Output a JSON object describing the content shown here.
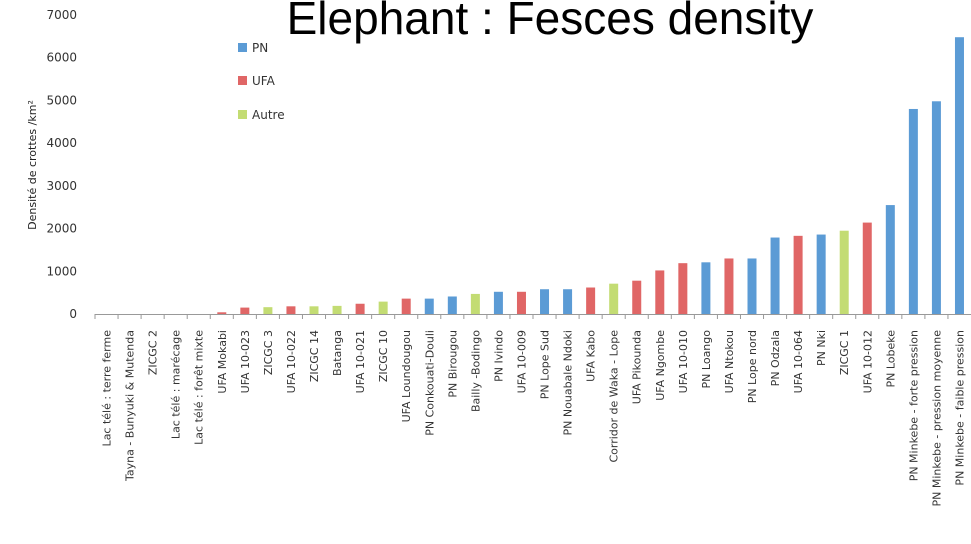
{
  "chart_data": {
    "type": "bar",
    "title": "Elephant : Fesces density",
    "xlabel": "",
    "ylabel": "Densité de crottes /km²",
    "ylim": [
      0,
      7000
    ],
    "yticks": [
      0,
      1000,
      2000,
      3000,
      4000,
      5000,
      6000,
      7000
    ],
    "grid": false,
    "legend_position": "top-left",
    "legend": [
      {
        "name": "PN",
        "color": "#5b9bd5"
      },
      {
        "name": "UFA",
        "color": "#e06666"
      },
      {
        "name": "Autre",
        "color": "#c3dc73"
      }
    ],
    "categories": [
      "Lac télé : terre ferme",
      "Tayna - Bunyuki & Mutenda",
      "ZICGC 2",
      "Lac télé : marécage",
      "Lac télé : forêt mixte",
      "UFA Mokabi",
      "UFA 10-023",
      "ZICGC 3",
      "UFA 10-022",
      "ZICGC 14",
      "Batanga",
      "UFA 10-021",
      "ZICGC 10",
      "UFA Loundougou",
      "PN Conkouati-Douli",
      "PN Birougou",
      "Bailly -Bodingo",
      "PN Ivindo",
      "UFA 10-009",
      "PN Lope Sud",
      "PN Nouabale Ndoki",
      "UFA Kabo",
      "Corridor de Waka - Lope",
      "UFA Pikounda",
      "UFA Ngombe",
      "UFA 10-010",
      "PN Loango",
      "UFA Ntokou",
      "PN Lope nord",
      "PN Odzala",
      "UFA 10-064",
      "PN Nki",
      "ZICGC 1",
      "UFA 10-012",
      "PN Lobeke",
      "PN Minkebe - forte pression",
      "PN Minkebe - pression moyenne",
      "PN Minkebe - faible pression"
    ],
    "values": [
      0,
      0,
      0,
      0,
      0,
      40,
      150,
      160,
      180,
      180,
      190,
      240,
      290,
      360,
      360,
      410,
      470,
      520,
      520,
      580,
      580,
      620,
      710,
      780,
      1020,
      1190,
      1210,
      1300,
      1300,
      1790,
      1830,
      1860,
      1950,
      2140,
      2550,
      4800,
      4980,
      6480
    ],
    "groups": [
      "Autre",
      "Autre",
      "Autre",
      "Autre",
      "Autre",
      "UFA",
      "UFA",
      "Autre",
      "UFA",
      "Autre",
      "Autre",
      "UFA",
      "Autre",
      "UFA",
      "PN",
      "PN",
      "Autre",
      "PN",
      "UFA",
      "PN",
      "PN",
      "UFA",
      "Autre",
      "UFA",
      "UFA",
      "UFA",
      "PN",
      "UFA",
      "PN",
      "PN",
      "UFA",
      "PN",
      "Autre",
      "UFA",
      "PN",
      "PN",
      "PN",
      "PN"
    ]
  }
}
